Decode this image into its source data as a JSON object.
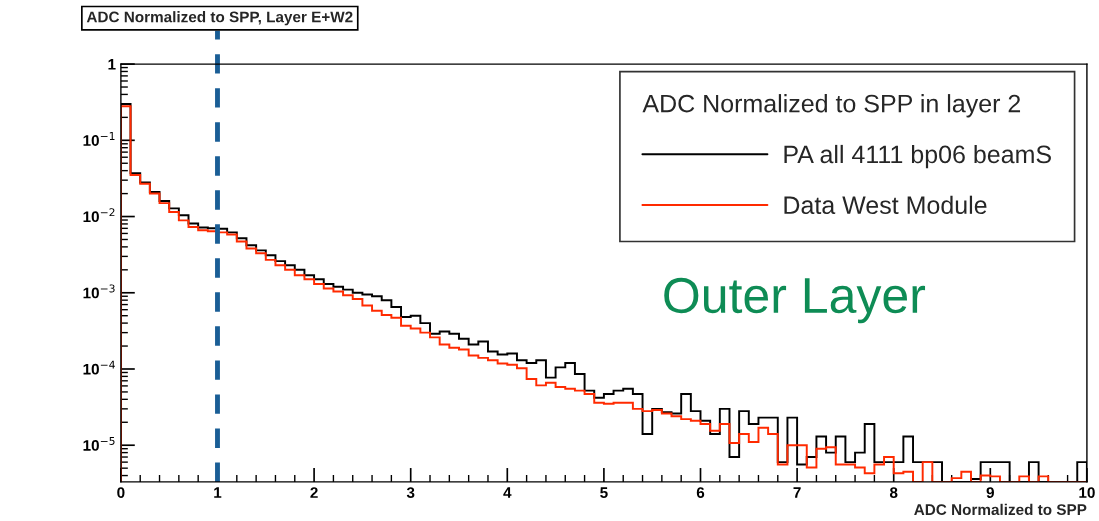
{
  "chart_data": {
    "type": "histogram",
    "title": "ADC Normalized to SPP, Layer E+W2",
    "xlabel": "ADC Normalized to SPP",
    "legend_title": "ADC Normalized to SPP in layer 2",
    "bins": [
      0,
      0.1,
      0.2,
      0.3,
      0.4,
      0.5,
      0.6,
      0.7,
      0.8,
      0.9,
      1.0,
      1.1,
      1.2,
      1.3,
      1.4,
      1.5,
      1.6,
      1.7,
      1.8,
      1.9,
      2.0,
      2.1,
      2.2,
      2.3,
      2.4,
      2.5,
      2.6,
      2.7,
      2.8,
      2.9,
      3.0,
      3.1,
      3.2,
      3.3,
      3.4,
      3.5,
      3.6,
      3.7,
      3.8,
      3.9,
      4.0,
      4.1,
      4.2,
      4.3,
      4.4,
      4.5,
      4.6,
      4.7,
      4.8,
      4.9,
      5.0,
      5.1,
      5.2,
      5.3,
      5.4,
      5.5,
      5.6,
      5.7,
      5.8,
      5.9,
      6.0,
      6.1,
      6.2,
      6.3,
      6.4,
      6.5,
      6.6,
      6.7,
      6.8,
      6.9,
      7.0,
      7.1,
      7.2,
      7.3,
      7.4,
      7.5,
      7.6,
      7.7,
      7.8,
      7.9,
      8.0,
      8.1,
      8.2,
      8.3,
      8.4,
      8.5,
      8.6,
      8.7,
      8.8,
      8.9,
      9.0,
      9.1,
      9.2,
      9.3,
      9.4,
      9.5,
      9.6,
      9.7,
      9.8,
      9.9,
      10.0
    ],
    "series": [
      {
        "name": "PA all 4111 bp06 beamS",
        "color": "#000000",
        "values": [
          0.3,
          0.037,
          0.028,
          0.021,
          0.016,
          0.0128,
          0.0104,
          0.0081,
          0.0072,
          0.007,
          0.0069,
          0.0062,
          0.0052,
          0.0042,
          0.0036,
          0.0031,
          0.0026,
          0.0023,
          0.002,
          0.0017,
          0.0015,
          0.0013,
          0.0012,
          0.0011,
          0.001,
          0.00095,
          0.0009,
          0.0008,
          0.00065,
          0.00048,
          0.0005,
          0.0004,
          0.00029,
          0.00031,
          0.00029,
          0.00025,
          0.00021,
          0.00023,
          0.00017,
          0.000155,
          0.00016,
          0.00013,
          0.00012,
          0.00013,
          7.7e-05,
          0.000105,
          0.00012,
          8.6e-05,
          5.2e-05,
          4.2e-05,
          4.7e-05,
          5.2e-05,
          5.5e-05,
          4.7e-05,
          1.4e-05,
          3e-05,
          2.7e-05,
          2.6e-05,
          4.7e-05,
          2.8e-05,
          2.1e-05,
          1.4e-05,
          3e-05,
          7e-06,
          2.8e-05,
          1.9e-05,
          2.3e-05,
          2.3e-05,
          6e-06,
          2.3e-05,
          5.6e-06,
          7e-06,
          1.3e-05,
          8e-06,
          1.3e-05,
          6e-06,
          8e-06,
          1.9e-05,
          6e-06,
          6e-06,
          6e-06,
          1.3e-05,
          6e-06,
          6e-06,
          6e-06,
          null,
          null,
          null,
          3.6e-06,
          6e-06,
          6e-06,
          6e-06,
          null,
          null,
          6e-06,
          null,
          null,
          null,
          null,
          6e-06
        ]
      },
      {
        "name": "Data West Module",
        "color": "#ff2a00",
        "values": [
          0.28,
          0.035,
          0.027,
          0.02,
          0.015,
          0.0115,
          0.0089,
          0.0073,
          0.0066,
          0.0064,
          0.0062,
          0.0058,
          0.0047,
          0.0038,
          0.0033,
          0.0027,
          0.0023,
          0.002,
          0.0017,
          0.0015,
          0.0013,
          0.00114,
          0.00104,
          0.00093,
          0.00083,
          0.00068,
          0.00058,
          0.00051,
          0.00047,
          0.00037,
          0.00034,
          0.0003,
          0.00026,
          0.00021,
          0.00019,
          0.00018,
          0.00015,
          0.00014,
          0.00013,
          0.000118,
          0.000114,
          0.000102,
          7.4e-05,
          6.1e-05,
          6.6e-05,
          5.8e-05,
          5.5e-05,
          5.2e-05,
          4.7e-05,
          3.6e-05,
          3.5e-05,
          3.6e-05,
          3.6e-05,
          3e-05,
          2.8e-05,
          2.9e-05,
          2.6e-05,
          2.4e-05,
          2.2e-05,
          2.1e-05,
          1.9e-05,
          1.55e-05,
          1.9e-05,
          1.07e-05,
          1.4e-05,
          1.1e-05,
          1.7e-05,
          1.4e-05,
          5.6e-06,
          1e-05,
          1e-05,
          5.1e-06,
          9e-06,
          9.4e-06,
          5.6e-06,
          5.6e-06,
          5.1e-06,
          4.3e-06,
          5.6e-06,
          7e-06,
          4.3e-06,
          4.5e-06,
          null,
          6e-06,
          null,
          null,
          3.7e-06,
          4.5e-06,
          null,
          4e-06,
          3.9e-06,
          null,
          null,
          3.9e-06,
          null,
          3.9e-06,
          null,
          null,
          null,
          null
        ]
      }
    ],
    "log": "y",
    "xlim": [
      0,
      10
    ],
    "xticks": [
      0,
      1,
      2,
      3,
      4,
      5,
      6,
      7,
      8,
      9,
      10
    ],
    "ylim": [
      3.3e-06,
      1
    ],
    "yticks": [
      {
        "value": 1,
        "label": "1"
      },
      {
        "value": 0.1,
        "label": "10$^{−1}$"
      },
      {
        "value": 0.01,
        "label": "10$^{−2}$"
      },
      {
        "value": 0.001,
        "label": "10$^{−3}$"
      },
      {
        "value": 0.0001,
        "label": "10$^{−4}$"
      },
      {
        "value": 1e-05,
        "label": "10$^{−5}$"
      }
    ],
    "ref_lines": [
      {
        "axis": "x",
        "value": 1,
        "color": "#1a5e96",
        "line_style": "dashed"
      }
    ],
    "annotations": [
      "Outer Layer"
    ],
    "legend": "top right",
    "grid": false
  }
}
